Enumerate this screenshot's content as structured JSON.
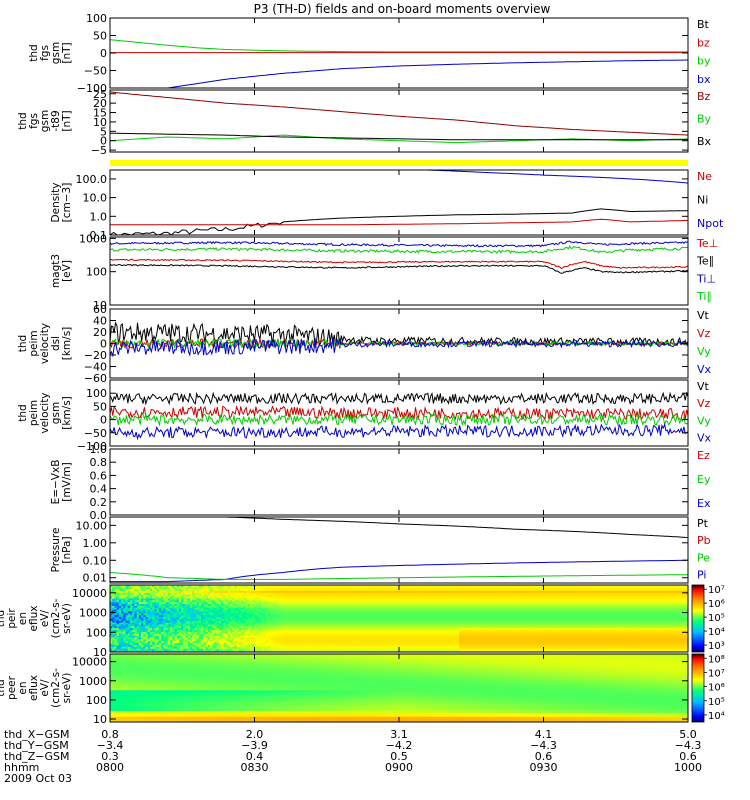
{
  "title": "P3 (TH-D) fields and on-board moments overview",
  "colors": {
    "black": "#000000",
    "red": "#cc0000",
    "darkred": "#8b0000",
    "green": "#00cc00",
    "blue": "#0000cc",
    "yellow": "#ffff00"
  },
  "chart_data": [
    {
      "type": "line",
      "panel": "fgs",
      "ylabel": [
        "thd",
        "fgs",
        "gsm",
        "[nT]"
      ],
      "ylim": [
        -100,
        100
      ],
      "yticks": [
        {
          "v": 100,
          "t": "100"
        },
        {
          "v": 50,
          "t": "50"
        },
        {
          "v": 0,
          "t": "0"
        },
        {
          "v": -50,
          "t": "−50"
        },
        {
          "v": -100,
          "t": "−100"
        }
      ],
      "legend": [
        {
          "label": "Bt",
          "color": "#000000"
        },
        {
          "label": "bz",
          "color": "#cc0000"
        },
        {
          "label": "by",
          "color": "#00cc00"
        },
        {
          "label": "bx",
          "color": "#0000cc"
        }
      ],
      "series": [
        {
          "color": "#00cc00",
          "x": [
            0,
            0.05,
            0.1,
            0.15,
            0.2,
            0.3,
            0.4,
            0.5,
            0.6,
            0.7,
            0.8,
            1.0
          ],
          "y": [
            38,
            30,
            22,
            15,
            10,
            6,
            4,
            3,
            3,
            3,
            3,
            3
          ]
        },
        {
          "color": "#cc0000",
          "x": [
            0,
            1
          ],
          "y": [
            1,
            1
          ]
        },
        {
          "color": "#0000cc",
          "x": [
            0.1,
            0.2,
            0.3,
            0.4,
            0.5,
            0.6,
            0.7,
            0.8,
            0.9,
            1.0
          ],
          "y": [
            -100,
            -75,
            -58,
            -45,
            -37,
            -32,
            -28,
            -25,
            -22,
            -20
          ]
        }
      ]
    },
    {
      "type": "line",
      "panel": "fgs_dsl",
      "ylabel": [
        "thd",
        "fgs",
        "gsm",
        "-t89",
        "[nT]"
      ],
      "ylim": [
        -6,
        27
      ],
      "yticks": [
        {
          "v": 25,
          "t": "25"
        },
        {
          "v": 20,
          "t": "20"
        },
        {
          "v": 15,
          "t": "15"
        },
        {
          "v": 10,
          "t": "10"
        },
        {
          "v": 5,
          "t": "5"
        },
        {
          "v": 0,
          "t": "0"
        },
        {
          "v": -5,
          "t": "−5"
        }
      ],
      "legend": [
        {
          "label": "Bz",
          "color": "#8b0000"
        },
        {
          "label": "By",
          "color": "#00cc00"
        },
        {
          "label": "Bx",
          "color": "#000000"
        }
      ],
      "series": [
        {
          "color": "#8b0000",
          "x": [
            0,
            0.03,
            0.1,
            0.2,
            0.3,
            0.4,
            0.5,
            0.6,
            0.7,
            0.8,
            0.9,
            1.0
          ],
          "y": [
            26,
            25,
            23,
            20,
            18,
            15.5,
            13,
            11,
            8,
            6,
            4.5,
            3
          ]
        },
        {
          "color": "#00cc00",
          "x": [
            0,
            0.1,
            0.2,
            0.3,
            0.4,
            0.5,
            0.6,
            0.7,
            0.8,
            0.9,
            1.0
          ],
          "y": [
            0,
            2,
            1,
            3,
            1,
            0,
            -1,
            0,
            1,
            0,
            1
          ]
        },
        {
          "color": "#000000",
          "x": [
            0,
            0.1,
            0.2,
            0.3,
            0.4,
            0.5,
            0.6,
            0.7,
            0.8,
            0.9,
            1.0
          ],
          "y": [
            4,
            3.5,
            3,
            2,
            1.5,
            1,
            0.5,
            0.5,
            0.5,
            0.5,
            0.5
          ]
        }
      ]
    },
    {
      "type": "line",
      "panel": "density",
      "log": true,
      "ylabel": [
        "Density",
        "[cm−3]"
      ],
      "ylim": [
        0.1,
        300
      ],
      "yticks": [
        {
          "v": 100,
          "t": "100.0"
        },
        {
          "v": 10,
          "t": "10.0"
        },
        {
          "v": 1,
          "t": "1.0"
        },
        {
          "v": 0.1,
          "t": "0.1"
        }
      ],
      "legend": [
        {
          "label": "Ne",
          "color": "#cc0000"
        },
        {
          "label": "Ni",
          "color": "#000000"
        },
        {
          "label": "Npot",
          "color": "#0000cc"
        }
      ],
      "series": [
        {
          "color": "#0000cc",
          "x": [
            0.55,
            0.65,
            0.75,
            0.85,
            0.95,
            1.0
          ],
          "y": [
            300,
            220,
            160,
            120,
            80,
            60
          ]
        },
        {
          "color": "#000000",
          "x": [
            0,
            0.1,
            0.2,
            0.25,
            0.3,
            0.4,
            0.5,
            0.6,
            0.7,
            0.8,
            0.85,
            0.9,
            1.0
          ],
          "y": [
            0.1,
            0.12,
            0.2,
            0.3,
            0.5,
            0.8,
            1.0,
            1.2,
            1.3,
            1.5,
            2.5,
            1.8,
            2
          ]
        },
        {
          "color": "#cc0000",
          "x": [
            0,
            0.2,
            0.4,
            0.6,
            0.8,
            0.85,
            0.9,
            1.0
          ],
          "y": [
            0.35,
            0.35,
            0.35,
            0.4,
            0.5,
            0.7,
            0.5,
            0.6
          ]
        }
      ]
    },
    {
      "type": "line",
      "panel": "temperature",
      "log": true,
      "ylabel": [
        "magt3",
        "[eV]"
      ],
      "ylim": [
        10,
        1100
      ],
      "yticks": [
        {
          "v": 1000,
          "t": "1000"
        },
        {
          "v": 100,
          "t": "100"
        },
        {
          "v": 10,
          "t": "10"
        }
      ],
      "legend": [
        {
          "label": "Te⊥",
          "color": "#cc0000"
        },
        {
          "label": "Te∥",
          "color": "#000000"
        },
        {
          "label": "Ti⊥",
          "color": "#0000cc"
        },
        {
          "label": "Ti∥",
          "color": "#00cc00"
        }
      ],
      "series": [
        {
          "color": "#0000cc",
          "x": [
            0,
            0.2,
            0.4,
            0.6,
            0.75,
            0.8,
            0.85,
            0.9,
            1.0
          ],
          "y": [
            700,
            750,
            650,
            600,
            600,
            800,
            650,
            700,
            750
          ]
        },
        {
          "color": "#00cc00",
          "x": [
            0,
            0.2,
            0.4,
            0.6,
            0.75,
            0.8,
            0.85,
            0.9,
            1.0
          ],
          "y": [
            450,
            480,
            420,
            400,
            400,
            550,
            380,
            450,
            500
          ]
        },
        {
          "color": "#cc0000",
          "x": [
            0,
            0.2,
            0.4,
            0.6,
            0.75,
            0.78,
            0.82,
            0.85,
            0.88,
            1.0
          ],
          "y": [
            230,
            220,
            190,
            200,
            200,
            130,
            200,
            150,
            130,
            140
          ]
        },
        {
          "color": "#000000",
          "x": [
            0,
            0.2,
            0.4,
            0.6,
            0.75,
            0.78,
            0.82,
            0.85,
            0.88,
            1.0
          ],
          "y": [
            160,
            150,
            130,
            150,
            150,
            90,
            130,
            100,
            95,
            105
          ]
        }
      ]
    },
    {
      "type": "line",
      "panel": "peim_velocity",
      "ylabel": [
        "thd",
        "peim",
        "velocity",
        "dsl",
        "[km/s]"
      ],
      "ylim": [
        -60,
        60
      ],
      "yticks": [
        {
          "v": 60,
          "t": "60"
        },
        {
          "v": 40,
          "t": "40"
        },
        {
          "v": 20,
          "t": "20"
        },
        {
          "v": 0,
          "t": "0"
        },
        {
          "v": -20,
          "t": "−20"
        },
        {
          "v": -40,
          "t": "−40"
        },
        {
          "v": -60,
          "t": "−60"
        }
      ],
      "legend": [
        {
          "label": "Vt",
          "color": "#000000"
        },
        {
          "label": "Vz",
          "color": "#cc0000"
        },
        {
          "label": "Vy",
          "color": "#00cc00"
        },
        {
          "label": "Vx",
          "color": "#0000cc"
        }
      ],
      "series": [
        {
          "color": "#000000",
          "x": [
            0,
            0.3,
            0.45,
            1.0
          ],
          "y": [
            20,
            15,
            5,
            3
          ]
        },
        {
          "color": "#cc0000",
          "x": [
            0,
            0.3,
            0.45,
            1.0
          ],
          "y": [
            0,
            0,
            0,
            0
          ]
        },
        {
          "color": "#00cc00",
          "x": [
            0,
            0.3,
            0.45,
            1.0
          ],
          "y": [
            0,
            0,
            0,
            0
          ]
        },
        {
          "color": "#0000cc",
          "x": [
            0,
            0.3,
            0.45,
            1.0
          ],
          "y": [
            -8,
            -5,
            -1,
            -1
          ]
        }
      ]
    },
    {
      "type": "line",
      "panel": "peim_velocity_gsm",
      "ylabel": [
        "thd",
        "peim",
        "velocity",
        "gsm",
        "[km/s]"
      ],
      "ylim": [
        -100,
        150
      ],
      "yticks": [
        {
          "v": 100,
          "t": "100"
        },
        {
          "v": 50,
          "t": "50"
        },
        {
          "v": 0,
          "t": "0"
        },
        {
          "v": -50,
          "t": "−50"
        },
        {
          "v": -100,
          "t": "−100"
        }
      ],
      "legend": [
        {
          "label": "Vt",
          "color": "#000000"
        },
        {
          "label": "Vz",
          "color": "#cc0000"
        },
        {
          "label": "Vy",
          "color": "#00cc00"
        },
        {
          "label": "Vx",
          "color": "#0000cc"
        }
      ],
      "series": [
        {
          "color": "#000000",
          "x": [
            0,
            1
          ],
          "y": [
            80,
            80
          ]
        },
        {
          "color": "#cc0000",
          "x": [
            0,
            1
          ],
          "y": [
            30,
            20
          ]
        },
        {
          "color": "#00cc00",
          "x": [
            0,
            1
          ],
          "y": [
            0,
            0
          ]
        },
        {
          "color": "#0000cc",
          "x": [
            0,
            1
          ],
          "y": [
            -50,
            -40
          ]
        }
      ]
    },
    {
      "type": "line",
      "panel": "efield",
      "ylabel": [
        "E=−VxB",
        "[mV/m]"
      ],
      "ylim": [
        0,
        1
      ],
      "yticks": [
        {
          "v": 1.0,
          "t": "1.0"
        },
        {
          "v": 0.8,
          "t": "0.8"
        },
        {
          "v": 0.6,
          "t": "0.6"
        },
        {
          "v": 0.4,
          "t": "0.4"
        },
        {
          "v": 0.2,
          "t": "0.2"
        },
        {
          "v": 0.0,
          "t": "0.0"
        }
      ],
      "legend": [
        {
          "label": "Ez",
          "color": "#cc0000"
        },
        {
          "label": "Ey",
          "color": "#00cc00"
        },
        {
          "label": "Ex",
          "color": "#0000cc"
        }
      ],
      "series": []
    },
    {
      "type": "line",
      "panel": "pressure",
      "log": true,
      "ylabel": [
        "Pressure",
        "[nPa]"
      ],
      "ylim": [
        0.005,
        30
      ],
      "yticks": [
        {
          "v": 10,
          "t": "10.00"
        },
        {
          "v": 1,
          "t": "1.00"
        },
        {
          "v": 0.1,
          "t": "0.10"
        },
        {
          "v": 0.01,
          "t": "0.01"
        }
      ],
      "legend": [
        {
          "label": "Pt",
          "color": "#000000"
        },
        {
          "label": "Pb",
          "color": "#cc0000"
        },
        {
          "label": "Pe",
          "color": "#00cc00"
        },
        {
          "label": "Pi",
          "color": "#0000cc"
        }
      ],
      "series": [
        {
          "color": "#000000",
          "x": [
            0.2,
            0.3,
            0.5,
            0.7,
            0.9,
            1.0
          ],
          "y": [
            30,
            22,
            12,
            6,
            3,
            2
          ]
        },
        {
          "color": "#0000cc",
          "x": [
            0,
            0.1,
            0.2,
            0.3,
            0.4,
            0.5,
            0.6,
            0.7,
            0.8,
            0.9,
            1.0
          ],
          "y": [
            0.006,
            0.006,
            0.008,
            0.02,
            0.04,
            0.05,
            0.06,
            0.07,
            0.08,
            0.09,
            0.1
          ]
        },
        {
          "color": "#00cc00",
          "x": [
            0,
            0.05,
            0.1,
            0.2,
            0.3,
            0.4,
            0.5,
            0.6,
            0.7,
            0.8,
            0.9,
            1.0
          ],
          "y": [
            0.02,
            0.015,
            0.01,
            0.008,
            0.008,
            0.009,
            0.01,
            0.011,
            0.012,
            0.013,
            0.014,
            0.015
          ]
        }
      ]
    },
    {
      "type": "heatmap",
      "panel": "peir_eflux",
      "log": true,
      "ylabel": [
        "thd",
        "peir",
        "en",
        "eflux",
        "eV/",
        "(cm2-s-",
        "sr-eV)"
      ],
      "ylim": [
        10,
        25000
      ],
      "yticks": [
        {
          "v": 10000,
          "t": "10000"
        },
        {
          "v": 1000,
          "t": "1000"
        },
        {
          "v": 100,
          "t": "100"
        },
        {
          "v": 10,
          "t": "10"
        }
      ],
      "colorbar": [
        {
          "v": 7,
          "t": "10⁷"
        },
        {
          "v": 6,
          "t": "10⁶"
        },
        {
          "v": 5,
          "t": "10⁵"
        },
        {
          "v": 4,
          "t": "10⁴"
        },
        {
          "v": 3,
          "t": "10³"
        }
      ],
      "crange": [
        2.5,
        7.3
      ]
    },
    {
      "type": "heatmap",
      "panel": "peer_eflux",
      "log": true,
      "ylabel": [
        "thd",
        "peer",
        "en",
        "eflux",
        "eV/",
        "(cm2-s-",
        "sr-eV)"
      ],
      "ylim": [
        7,
        25000
      ],
      "yticks": [
        {
          "v": 10000,
          "t": "10000"
        },
        {
          "v": 1000,
          "t": "1000"
        },
        {
          "v": 100,
          "t": "100"
        },
        {
          "v": 10,
          "t": "10"
        }
      ],
      "colorbar": [
        {
          "v": 8,
          "t": "10⁸"
        },
        {
          "v": 7,
          "t": "10⁷"
        },
        {
          "v": 6,
          "t": "10⁶"
        },
        {
          "v": 5,
          "t": "10⁵"
        },
        {
          "v": 4,
          "t": "10⁴"
        }
      ],
      "crange": [
        3.5,
        8.3
      ]
    }
  ],
  "xaxis": {
    "rows": [
      {
        "label": "thd_X−GSM",
        "values": [
          "0.8",
          "2.0",
          "3.1",
          "4.1",
          "5.0"
        ]
      },
      {
        "label": "thd_Y−GSM",
        "values": [
          "−3.4",
          "−3.9",
          "−4.2",
          "−4.3",
          "−4.3"
        ]
      },
      {
        "label": "thd_Z−GSM",
        "values": [
          "0.3",
          "0.4",
          "0.5",
          "0.6",
          "0.6"
        ]
      },
      {
        "label": "hhmm",
        "values": [
          "0800",
          "0830",
          "0900",
          "0930",
          "1000"
        ]
      }
    ],
    "date": "2009 Oct 03"
  }
}
